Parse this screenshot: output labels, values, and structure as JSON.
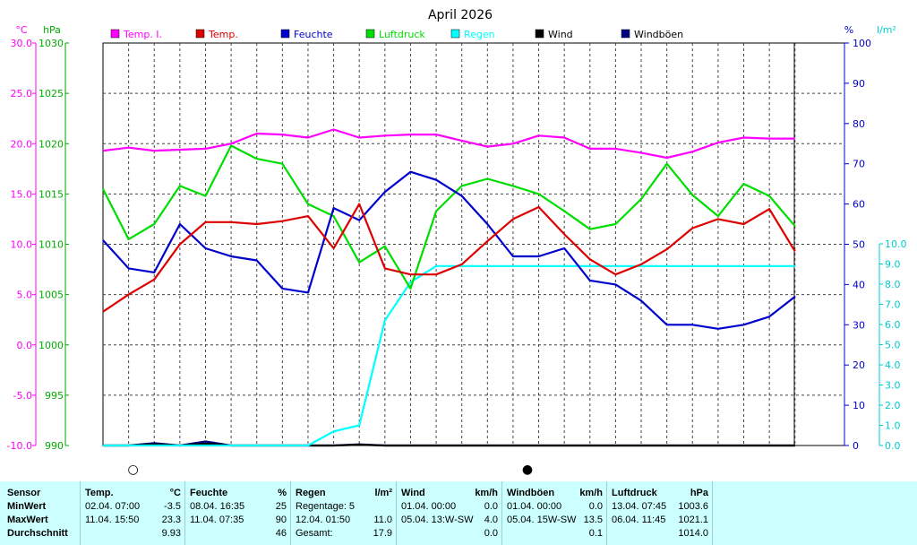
{
  "chart_data": {
    "type": "line",
    "title": "April 2026",
    "x": [
      "1",
      "2",
      "3",
      "4",
      "5",
      "6",
      "7",
      "8",
      "9",
      "10",
      "11",
      "12",
      "13",
      "14",
      "15",
      "16",
      "17",
      "18",
      "19",
      "20",
      "21",
      "22",
      "23",
      "24",
      "25",
      "26",
      "27",
      "28"
    ],
    "x_range": [
      1,
      30
    ],
    "axes": {
      "temp": {
        "unit": "°C",
        "ylim": [
          -10,
          30
        ],
        "ticks": [
          "30.0",
          "25.0",
          "20.0",
          "15.0",
          "10.0",
          "5.0",
          "0.0",
          "-5.0",
          "-10.0"
        ],
        "color": "#ff00ff"
      },
      "pressure": {
        "unit": "hPa",
        "ylim": [
          990,
          1030
        ],
        "ticks": [
          "1030",
          "1025",
          "1020",
          "1015",
          "1010",
          "1005",
          "1000",
          "995",
          "990"
        ],
        "color": "#00aa00"
      },
      "humidity": {
        "unit": "%",
        "ylim": [
          0,
          100
        ],
        "ticks": [
          "100",
          "90",
          "80",
          "70",
          "60",
          "50",
          "40",
          "30",
          "20",
          "10",
          "0"
        ],
        "color": "#0000cc"
      },
      "rain": {
        "unit": "l/m²",
        "ylim": [
          0,
          10
        ],
        "ticks": [
          "10.0",
          "9.0",
          "8.0",
          "7.0",
          "6.0",
          "5.0",
          "4.0",
          "3.0",
          "2.0",
          "1.0",
          "0.0"
        ],
        "color": "#00cccc"
      }
    },
    "grid": true,
    "legend_position": "top",
    "series": [
      {
        "name": "Temp. I.",
        "color": "#ff00ff",
        "axis": "temp",
        "values": [
          19.3,
          19.6,
          19.3,
          19.4,
          19.5,
          20.0,
          21.0,
          20.9,
          20.6,
          21.4,
          20.6,
          20.8,
          20.9,
          20.9,
          20.3,
          19.7,
          20.0,
          20.8,
          20.6,
          19.5,
          19.5,
          19.1,
          18.6,
          19.2,
          20.1,
          20.6,
          20.5,
          20.5
        ]
      },
      {
        "name": "Temp.",
        "color": "#dd0000",
        "axis": "temp",
        "values": [
          3.3,
          5.0,
          6.5,
          10.0,
          12.2,
          12.2,
          12.0,
          12.3,
          12.8,
          9.6,
          14.0,
          7.6,
          7.0,
          7.0,
          8.0,
          10.3,
          12.5,
          13.7,
          11.0,
          8.5,
          7.0,
          8.0,
          9.5,
          11.6,
          12.5,
          12.0,
          13.5,
          9.3
        ]
      },
      {
        "name": "Feuchte",
        "color": "#0000cc",
        "axis": "humidity",
        "values": [
          51,
          44,
          43,
          55,
          49,
          47,
          46,
          39,
          38,
          59,
          56,
          63,
          68,
          66,
          62,
          55,
          47,
          47,
          49,
          41,
          40,
          36,
          30,
          30,
          29,
          30,
          32,
          37
        ]
      },
      {
        "name": "Luftdruck",
        "color": "#00dd00",
        "axis": "pressure",
        "values": [
          1015.5,
          1010.5,
          1012.0,
          1015.8,
          1014.8,
          1019.8,
          1018.5,
          1018.0,
          1014.0,
          1012.8,
          1008.2,
          1009.8,
          1005.6,
          1013.3,
          1015.8,
          1016.5,
          1015.8,
          1015.0,
          1013.3,
          1011.5,
          1012.0,
          1014.5,
          1018.0,
          1014.9,
          1012.8,
          1016.0,
          1014.8,
          1011.8
        ]
      },
      {
        "name": "Regen",
        "color": "#00ffff",
        "axis": "rain",
        "values": [
          0,
          0,
          0,
          0,
          0,
          0,
          0,
          0,
          0,
          0.7,
          1.0,
          6.2,
          8.1,
          8.9,
          8.9,
          8.9,
          8.9,
          8.9,
          8.9,
          8.9,
          8.9,
          8.9,
          8.9,
          8.9,
          8.9,
          8.9,
          8.9,
          8.9
        ]
      },
      {
        "name": "Wind",
        "color": "#000000",
        "axis": "humidity",
        "values": [
          0,
          0,
          0.3,
          0,
          0.5,
          0,
          0,
          0,
          0,
          0,
          0.2,
          0,
          0,
          0,
          0,
          0,
          0,
          0,
          0,
          0,
          0,
          0,
          0,
          0,
          0,
          0,
          0,
          0
        ]
      },
      {
        "name": "Windböen",
        "color": "#000080",
        "axis": "humidity",
        "values": [
          0,
          0,
          0.6,
          0,
          1.0,
          0,
          0,
          0,
          0,
          0,
          0.3,
          0,
          0,
          0,
          0,
          0,
          0,
          0,
          0,
          0,
          0,
          0,
          0,
          0,
          0,
          0,
          0,
          0
        ]
      }
    ],
    "moon_phases": [
      {
        "day": 2,
        "symbol": "○"
      },
      {
        "day": 17,
        "symbol": "●"
      }
    ]
  },
  "stats": {
    "sensor": {
      "header": "Sensor",
      "min": "MinWert",
      "max": "MaxWert",
      "avg": "Durchschnitt"
    },
    "temp": {
      "header": "Temp.",
      "unit": "°C",
      "min_time": "02.04.  07:00",
      "min_val": "-3.5",
      "max_time": "11.04.  15:50",
      "max_val": "23.3",
      "avg_val": "9.93"
    },
    "humidity": {
      "header": "Feuchte",
      "unit": "%",
      "min_time": "08.04.  16:35",
      "min_val": "25",
      "max_time": "11.04.  07:35",
      "max_val": "90",
      "avg_val": "46"
    },
    "rain": {
      "header": "Regen",
      "unit": "l/m²",
      "days": "Regentage: 5",
      "max_time": "12.04.  01:50",
      "max_val": "11.0",
      "total_label": "Gesamt:",
      "total_val": "17.9"
    },
    "wind": {
      "header": "Wind",
      "unit": "km/h",
      "min_time": "01.04.  00:00",
      "min_val": "0.0",
      "max_time": "05.04.  13:W-SW",
      "max_val": "4.0",
      "avg_val": "0.0"
    },
    "gust": {
      "header": "Windböen",
      "unit": "km/h",
      "min_time": "01.04.  00:00",
      "min_val": "0.0",
      "max_time": "05.04.  15W-SW",
      "max_val": "13.5",
      "avg_val": "0.1"
    },
    "pressure": {
      "header": "Luftdruck",
      "unit": "hPa",
      "min_time": "13.04.  07:45",
      "min_val": "1003.6",
      "max_time": "06.04.  11:45",
      "max_val": "1021.1",
      "avg_val": "1014.0"
    }
  }
}
